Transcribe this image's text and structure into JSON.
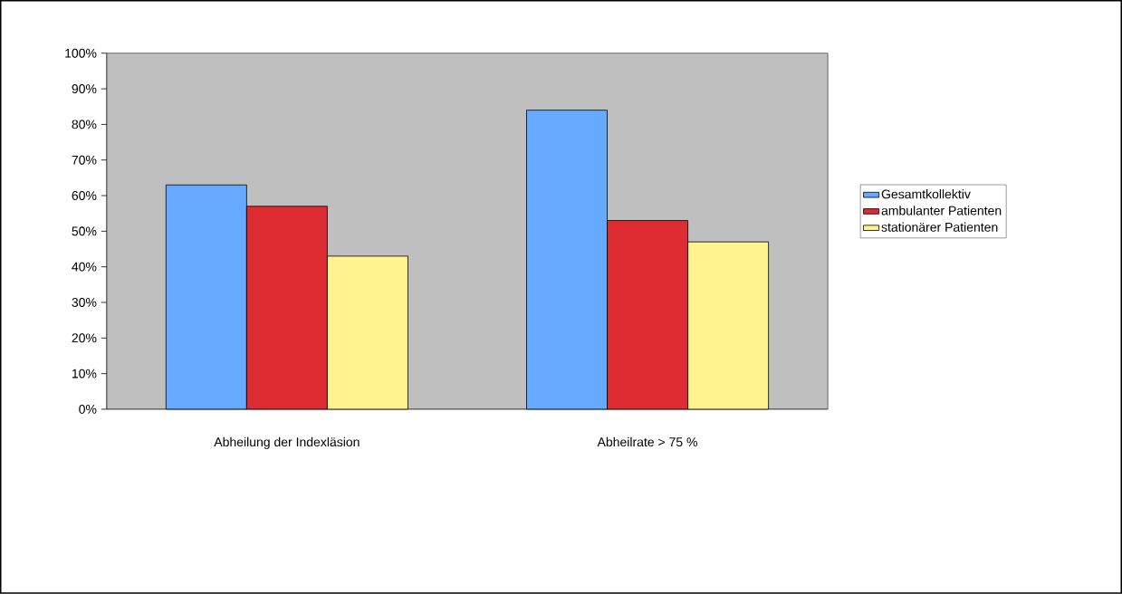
{
  "chart_data": {
    "type": "bar",
    "categories": [
      "Abheilung der Indexläsion",
      "Abheilrate > 75 %"
    ],
    "series": [
      {
        "name": "Gesamtkollektiv",
        "color": "#66aaff",
        "values": [
          63,
          84
        ]
      },
      {
        "name": "ambulanter Patienten",
        "color": "#dd2d33",
        "values": [
          57,
          53
        ]
      },
      {
        "name": "stationärer Patienten",
        "color": "#fff38f",
        "values": [
          43,
          47
        ]
      }
    ],
    "ylim": [
      0,
      100
    ],
    "yticks": [
      {
        "value": 0,
        "label": "0%"
      },
      {
        "value": 10,
        "label": "10%"
      },
      {
        "value": 20,
        "label": "20%"
      },
      {
        "value": 30,
        "label": "30%"
      },
      {
        "value": 40,
        "label": "40%"
      },
      {
        "value": 50,
        "label": "50%"
      },
      {
        "value": 60,
        "label": "60%"
      },
      {
        "value": 70,
        "label": "70%"
      },
      {
        "value": 80,
        "label": "80%"
      },
      {
        "value": 90,
        "label": "90%"
      },
      {
        "value": 100,
        "label": "100%"
      }
    ],
    "grid": false,
    "legend": "right"
  }
}
